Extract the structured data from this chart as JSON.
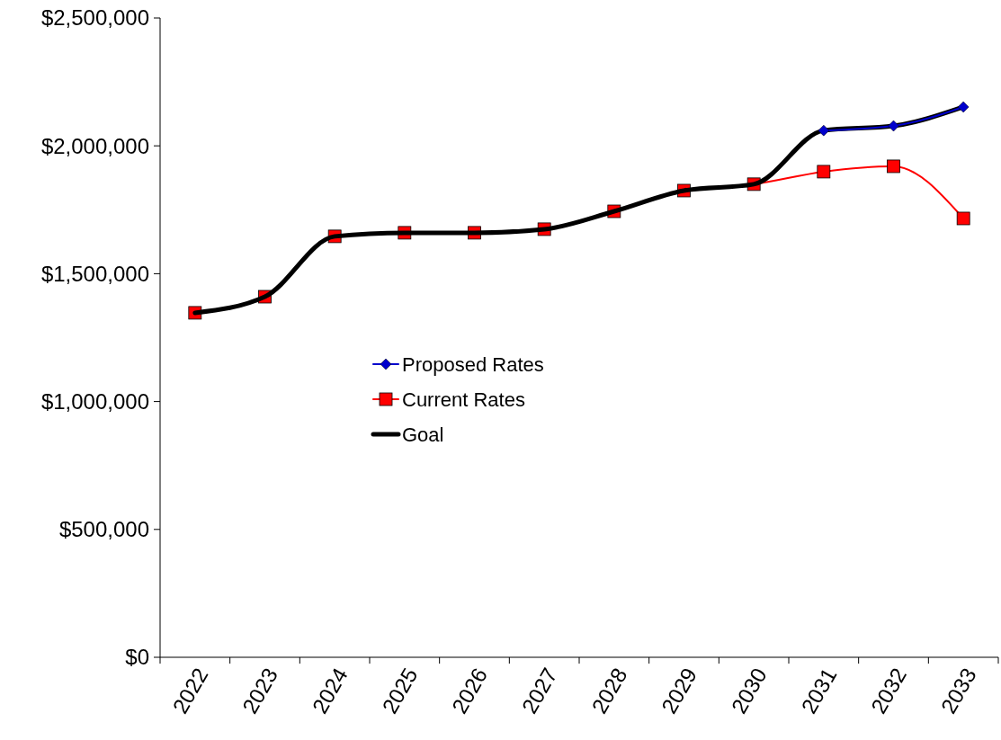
{
  "chart_data": {
    "type": "line",
    "categories": [
      "2022",
      "2023",
      "2024",
      "2025",
      "2026",
      "2027",
      "2028",
      "2029",
      "2030",
      "2031",
      "2032",
      "2033"
    ],
    "series": [
      {
        "name": "Proposed Rates",
        "color": "#0000cc",
        "marker": "diamond",
        "values": [
          null,
          null,
          null,
          null,
          null,
          null,
          null,
          null,
          null,
          2060000,
          2078000,
          2152000
        ]
      },
      {
        "name": "Current Rates",
        "color": "#ff0000",
        "marker": "square",
        "values": [
          1347000,
          1410000,
          1646000,
          1660000,
          1660000,
          1674000,
          1744000,
          1825000,
          1850000,
          1899000,
          1920000,
          1716000
        ]
      },
      {
        "name": "Goal",
        "color": "#000000",
        "marker": "none",
        "values": [
          1347000,
          1410000,
          1646000,
          1660000,
          1660000,
          1674000,
          1744000,
          1825000,
          1850000,
          2060000,
          2078000,
          2152000
        ]
      }
    ],
    "ylim": [
      0,
      2500000
    ],
    "yticks": [
      {
        "value": 0,
        "label": "$0"
      },
      {
        "value": 500000,
        "label": "$500,000"
      },
      {
        "value": 1000000,
        "label": "$1,000,000"
      },
      {
        "value": 1500000,
        "label": "$1,500,000"
      },
      {
        "value": 2000000,
        "label": "$2,000,000"
      },
      {
        "value": 2500000,
        "label": "$2,500,000"
      }
    ],
    "grid": false,
    "legend": "center"
  }
}
